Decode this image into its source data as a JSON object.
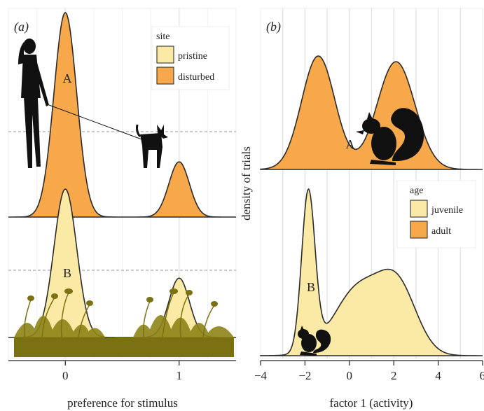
{
  "chart_data": [
    {
      "type": "area",
      "panel_label": "(a)",
      "xlabel": "preference for stimulus",
      "ylabel": "",
      "xticks": [
        0,
        1
      ],
      "xlim": [
        -0.5,
        1.5
      ],
      "grid": true,
      "legend": {
        "title": "site",
        "position": "top-right",
        "entries": [
          {
            "name": "pristine",
            "color": "#fbeaa6"
          },
          {
            "name": "disturbed",
            "color": "#f7a84b"
          }
        ]
      },
      "ridges": [
        {
          "label": "A",
          "series": "disturbed",
          "color": "#f7a84b",
          "peaks": [
            {
              "mean": 0.0,
              "sd": 0.1,
              "weight": 1.0
            },
            {
              "mean": 1.0,
              "sd": 0.09,
              "weight": 0.27
            }
          ]
        },
        {
          "label": "B",
          "series": "pristine",
          "color": "#fbeaa6",
          "peaks": [
            {
              "mean": 0.0,
              "sd": 0.1,
              "weight": 1.0
            },
            {
              "mean": 1.0,
              "sd": 0.09,
              "weight": 0.4
            }
          ]
        }
      ],
      "illustrations": [
        "person-walking-dog-icon",
        "grass-silhouette-icon"
      ]
    },
    {
      "type": "area",
      "panel_label": "(b)",
      "xlabel": "factor 1 (activity)",
      "ylabel": "density of trials",
      "xticks": [
        -4,
        -2,
        0,
        2,
        4,
        6
      ],
      "xlim": [
        -4,
        6
      ],
      "grid": true,
      "legend": {
        "title": "age",
        "position": "bottom-right",
        "entries": [
          {
            "name": "juvenile",
            "color": "#fbeaa6"
          },
          {
            "name": "adult",
            "color": "#f7a84b"
          }
        ]
      },
      "ridges": [
        {
          "label": "A",
          "series": "adult",
          "color": "#f7a84b",
          "peaks": [
            {
              "mean": -1.4,
              "sd": 0.75,
              "weight": 1.0
            },
            {
              "mean": 2.1,
              "sd": 0.85,
              "weight": 0.95
            }
          ]
        },
        {
          "label": "B",
          "series": "juvenile",
          "color": "#fbeaa6",
          "peaks": [
            {
              "mean": -1.85,
              "sd": 0.3,
              "weight": 1.0
            },
            {
              "mean": 0.4,
              "sd": 1.1,
              "weight": 0.42
            },
            {
              "mean": 2.2,
              "sd": 0.85,
              "weight": 0.4
            }
          ]
        }
      ],
      "illustrations": [
        "large-squirrel-icon",
        "small-squirrel-icon"
      ]
    }
  ]
}
